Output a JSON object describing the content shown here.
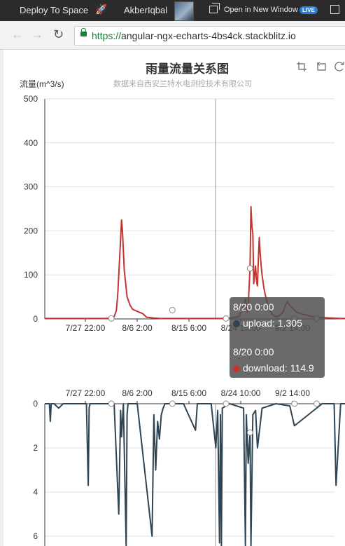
{
  "topbar": {
    "deploy_label": "Deploy To Space",
    "username": "AkberIqbal",
    "open_window_label": "Open in New Window",
    "live_badge": "LIVE"
  },
  "browser": {
    "url_scheme": "https://",
    "url_host": "angular-ngx-echarts-4bs4ck.stackblitz.io"
  },
  "chart": {
    "title": "雨量流量关系图",
    "subtitle": "数据来自西安兰特水电测控技术有限公司",
    "toolbox": [
      "zoom-icon",
      "zoom-reset-icon",
      "restore-icon"
    ]
  },
  "tooltip": {
    "upload_date": "8/20 0:00",
    "upload_text": "upload: 1.305",
    "download_date": "8/20 0:00",
    "download_text": "download: 114.9",
    "upload_color": "#2f4554",
    "download_color": "#c23531"
  },
  "chart_data": [
    {
      "type": "line",
      "ylabel": "流量(m^3/s)",
      "ylim": [
        0,
        500
      ],
      "yticks": [
        "500",
        "400",
        "300",
        "200",
        "100",
        "0"
      ],
      "xticks": [
        "7/27 22:00",
        "8/6 2:00",
        "8/15 6:00",
        "8/24 10:00",
        "9/2 14:00"
      ],
      "series": [
        {
          "name": "download",
          "color": "#c23531",
          "x": [
            0,
            20,
            40,
            55,
            60,
            63,
            65,
            68,
            72,
            80,
            90,
            100,
            115,
            130,
            145,
            150,
            155,
            158,
            162,
            166,
            168,
            172,
            178,
            185,
            190,
            198,
            205,
            212,
            220,
            235,
            250,
            270,
            290,
            300,
            310,
            320,
            330,
            340,
            350,
            360,
            380,
            400,
            420,
            430,
            434,
            436,
            438,
            440,
            444,
            446,
            448,
            450,
            452,
            454,
            456,
            458,
            460,
            462,
            464,
            466,
            468,
            470,
            474,
            480,
            486,
            492,
            500,
            508,
            515,
            520,
            525,
            530,
            545,
            560,
            570,
            580,
            590,
            600,
            620,
            640,
            660
          ],
          "values": [
            1,
            1,
            1,
            1,
            1,
            1,
            1,
            1,
            1,
            1,
            1,
            1,
            1,
            1,
            2,
            5,
            20,
            60,
            140,
            225,
            200,
            110,
            50,
            30,
            22,
            18,
            15,
            12,
            4,
            2,
            1,
            1,
            1,
            1,
            1,
            1,
            1,
            1,
            1,
            1,
            1,
            2,
            5,
            30,
            45,
            30,
            15,
            30,
            115,
            255,
            210,
            195,
            80,
            100,
            120,
            85,
            75,
            135,
            185,
            150,
            120,
            100,
            70,
            40,
            20,
            10,
            5,
            8,
            15,
            30,
            40,
            30,
            15,
            10,
            8,
            5,
            4,
            3,
            2,
            1,
            1
          ]
        }
      ],
      "markers_x": [
        144,
        276,
        392,
        444,
        540,
        588
      ],
      "markers_y": [
        1,
        20,
        1,
        114.9,
        1,
        1
      ]
    },
    {
      "type": "line",
      "inverted_y": true,
      "ylim": [
        0,
        6
      ],
      "yticks": [
        "0",
        "2",
        "4",
        "6"
      ],
      "xticks": [
        "7/27 22:00",
        "8/6 2:00",
        "8/15 6:00",
        "8/24 10:00",
        "9/2 14:00"
      ],
      "series": [
        {
          "name": "upload",
          "color": "#2f4554",
          "x": [
            0,
            10,
            12,
            14,
            20,
            30,
            40,
            90,
            94,
            96,
            98,
            100,
            130,
            150,
            160,
            164,
            166,
            170,
            176,
            178,
            180,
            200,
            232,
            236,
            240,
            244,
            248,
            252,
            256,
            260,
            270,
            300,
            326,
            330,
            340,
            360,
            370,
            374,
            378,
            380,
            382,
            384,
            400,
            430,
            434,
            436,
            440,
            444,
            446,
            450,
            456,
            460,
            470,
            500,
            530,
            540,
            600,
            626,
            630,
            640,
            680
          ],
          "values": [
            0,
            0,
            0.8,
            0,
            0,
            0.2,
            0,
            0,
            3.7,
            0.2,
            0,
            0,
            0,
            0,
            5,
            0.3,
            1.5,
            0,
            7,
            0.5,
            0,
            0,
            6,
            0.5,
            3,
            0.8,
            1.6,
            0.5,
            0.2,
            0,
            0,
            0,
            1.2,
            0,
            0,
            0,
            2,
            0.3,
            6.3,
            0.5,
            6.8,
            0.2,
            0,
            0.2,
            6.5,
            0.5,
            2.7,
            1.3,
            7,
            0.5,
            0.3,
            2,
            0.2,
            0,
            0.1,
            1,
            0,
            0,
            3.7,
            0,
            0
          ]
        }
      ],
      "markers_x": [
        144,
        276,
        392,
        444,
        540,
        588
      ],
      "markers_y": [
        0,
        0,
        0,
        1.305,
        0,
        0
      ]
    }
  ]
}
